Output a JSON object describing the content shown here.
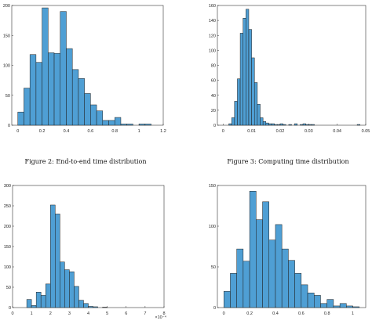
{
  "captions": {
    "fig2": "Figure 2: End-to-end time distribution",
    "fig3": "Figure 3: Computing time distribution"
  },
  "colors": {
    "bar": "#4f9fd4",
    "edge": "#1f1f1f",
    "axis": "#333333"
  },
  "chart_data": [
    {
      "type": "bar",
      "histogram": true,
      "title": "",
      "xlabel": "",
      "ylabel": "",
      "xlim": [
        -0.05,
        1.2
      ],
      "ylim": [
        0,
        200
      ],
      "xticks": [
        0,
        0.2,
        0.4,
        0.6,
        0.8,
        1,
        1.2
      ],
      "xtick_labels": [
        "0",
        "0.2",
        "0.4",
        "0.6",
        "0.8",
        "1",
        "1.2"
      ],
      "yticks": [
        0,
        50,
        100,
        150,
        200
      ],
      "ytick_labels": [
        "0",
        "50",
        "100",
        "150",
        "200"
      ],
      "bin_edges": [
        0.0,
        0.05,
        0.1,
        0.15,
        0.2,
        0.25,
        0.3,
        0.35,
        0.4,
        0.45,
        0.5,
        0.55,
        0.6,
        0.65,
        0.7,
        0.75,
        0.8,
        0.85,
        0.9,
        0.95,
        1.0,
        1.05,
        1.1,
        1.15
      ],
      "values": [
        22,
        62,
        118,
        105,
        196,
        121,
        120,
        190,
        128,
        93,
        78,
        53,
        34,
        24,
        8,
        8,
        13,
        2,
        2,
        0,
        2,
        2,
        0
      ],
      "grid": false
    },
    {
      "type": "bar",
      "histogram": true,
      "title": "",
      "xlabel": "",
      "ylabel": "",
      "xlim": [
        -0.002,
        0.05
      ],
      "ylim": [
        0,
        160
      ],
      "xticks": [
        0,
        0.01,
        0.02,
        0.03,
        0.04,
        0.05
      ],
      "xtick_labels": [
        "0",
        "0.01",
        "0.02",
        "0.03",
        "0.04",
        "0.05"
      ],
      "yticks": [
        0,
        20,
        40,
        60,
        80,
        100,
        120,
        140,
        160
      ],
      "ytick_labels": [
        "0",
        "20",
        "40",
        "60",
        "80",
        "100",
        "120",
        "140",
        "160"
      ],
      "bin_edges": [
        0.002,
        0.003,
        0.004,
        0.005,
        0.006,
        0.007,
        0.008,
        0.009,
        0.01,
        0.011,
        0.012,
        0.013,
        0.014,
        0.015,
        0.016,
        0.017,
        0.018,
        0.019,
        0.02,
        0.021,
        0.022,
        0.023,
        0.024,
        0.025,
        0.026,
        0.027,
        0.028,
        0.029,
        0.03,
        0.031,
        0.032,
        0.033,
        0.034,
        0.035,
        0.036,
        0.037,
        0.038,
        0.039,
        0.04,
        0.041,
        0.042,
        0.043,
        0.044,
        0.045,
        0.046,
        0.047,
        0.048
      ],
      "values": [
        2,
        10,
        32,
        62,
        123,
        143,
        155,
        128,
        90,
        57,
        28,
        10,
        5,
        3,
        2,
        2,
        1,
        1,
        2,
        1,
        0,
        1,
        0,
        2,
        0,
        1,
        2,
        1,
        1,
        1,
        0,
        0,
        0,
        0,
        0,
        0,
        0,
        0,
        0,
        0,
        0,
        0,
        0,
        0,
        0,
        1
      ],
      "grid": false
    },
    {
      "type": "bar",
      "histogram": true,
      "title": "",
      "xlabel": "",
      "ylabel": "",
      "x_exponent_label": "×10⁻⁴",
      "xlim": [
        0,
        8
      ],
      "ylim": [
        0,
        300
      ],
      "xticks": [
        0,
        1,
        2,
        3,
        4,
        5,
        6,
        7,
        8
      ],
      "xtick_labels": [
        "0",
        "1",
        "2",
        "3",
        "4",
        "5",
        "6",
        "7",
        "8"
      ],
      "yticks": [
        0,
        50,
        100,
        150,
        200,
        250,
        300
      ],
      "ytick_labels": [
        "0",
        "50",
        "100",
        "150",
        "200",
        "250",
        "300"
      ],
      "bin_edges": [
        0.75,
        1.0,
        1.25,
        1.5,
        1.75,
        2.0,
        2.25,
        2.5,
        2.75,
        3.0,
        3.25,
        3.5,
        3.75,
        4.0,
        4.25,
        4.5,
        4.75,
        5.0
      ],
      "values": [
        20,
        5,
        38,
        30,
        58,
        252,
        230,
        112,
        93,
        88,
        52,
        18,
        10,
        3,
        2,
        0,
        1
      ],
      "grid": false
    },
    {
      "type": "bar",
      "histogram": true,
      "title": "",
      "xlabel": "",
      "ylabel": "",
      "xlim": [
        -0.05,
        1.1
      ],
      "ylim": [
        0,
        150
      ],
      "xticks": [
        0,
        0.2,
        0.4,
        0.6,
        0.8,
        1
      ],
      "xtick_labels": [
        "0",
        "0.2",
        "0.4",
        "0.6",
        "0.8",
        "1"
      ],
      "yticks": [
        0,
        50,
        100,
        150
      ],
      "ytick_labels": [
        "0",
        "50",
        "100",
        "150"
      ],
      "bin_edges": [
        0.0,
        0.05,
        0.1,
        0.15,
        0.2,
        0.25,
        0.3,
        0.35,
        0.4,
        0.45,
        0.5,
        0.55,
        0.6,
        0.65,
        0.7,
        0.75,
        0.8,
        0.85,
        0.9,
        0.95,
        1.0,
        1.05
      ],
      "values": [
        20,
        42,
        72,
        57,
        143,
        108,
        130,
        83,
        102,
        72,
        58,
        42,
        28,
        18,
        15,
        5,
        10,
        2,
        5,
        2,
        1
      ],
      "grid": false
    }
  ]
}
